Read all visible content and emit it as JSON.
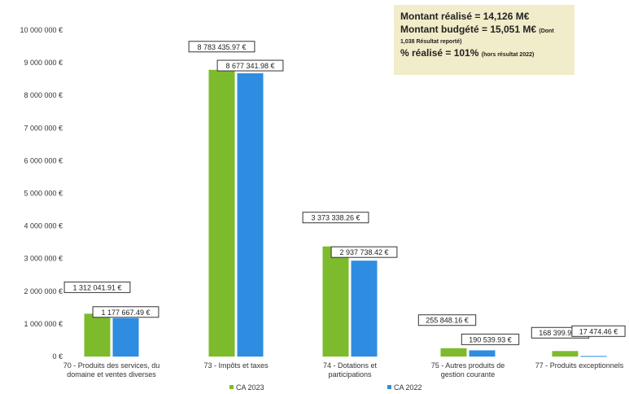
{
  "summary": {
    "line1": "Montant réalisé = 14,126 M€",
    "line2_main": "Montant budgété = 15,051 M€",
    "line2_note": "(Dont",
    "line3": "1,038 Résultat reporté)",
    "line4_main": "% réalisé = 101%",
    "line4_note": "(hors résultat 2022)"
  },
  "chart_data": {
    "type": "bar",
    "categories": [
      [
        "70 - Produits des services, du",
        "domaine et ventes diverses"
      ],
      [
        "73 - Impôts et taxes"
      ],
      [
        "74 - Dotations et",
        "participations"
      ],
      [
        "75 - Autres produits de",
        "gestion courante"
      ],
      [
        "77 - Produits exceptionnels"
      ]
    ],
    "series": [
      {
        "name": "CA 2023",
        "color": "#7dbb2d",
        "values": [
          1312041.91,
          8783435.97,
          3373338.26,
          255848.16,
          168399.91
        ],
        "labels": [
          "1 312 041.91 €",
          "8 783 435.97 €",
          "3 373 338.26 €",
          "255 848.16 €",
          "168 399.91 €"
        ]
      },
      {
        "name": "CA 2022",
        "color": "#2e8de0",
        "values": [
          1177667.49,
          8677341.98,
          2937738.42,
          190539.93,
          17474.46
        ],
        "labels": [
          "1 177 667.49 €",
          "8 677 341.98 €",
          "2 937 738.42 €",
          "190 539.93 €",
          "17 474.46 €"
        ]
      }
    ],
    "y_ticks": [
      "0 €",
      "1 000 000 €",
      "2 000 000 €",
      "3 000 000 €",
      "4 000 000 €",
      "5 000 000 €",
      "6 000 000 €",
      "7 000 000 €",
      "8 000 000 €",
      "9 000 000 €",
      "10 000 000 €"
    ],
    "ylim": [
      0,
      10000000
    ],
    "grid": false,
    "legend_position": "bottom"
  }
}
